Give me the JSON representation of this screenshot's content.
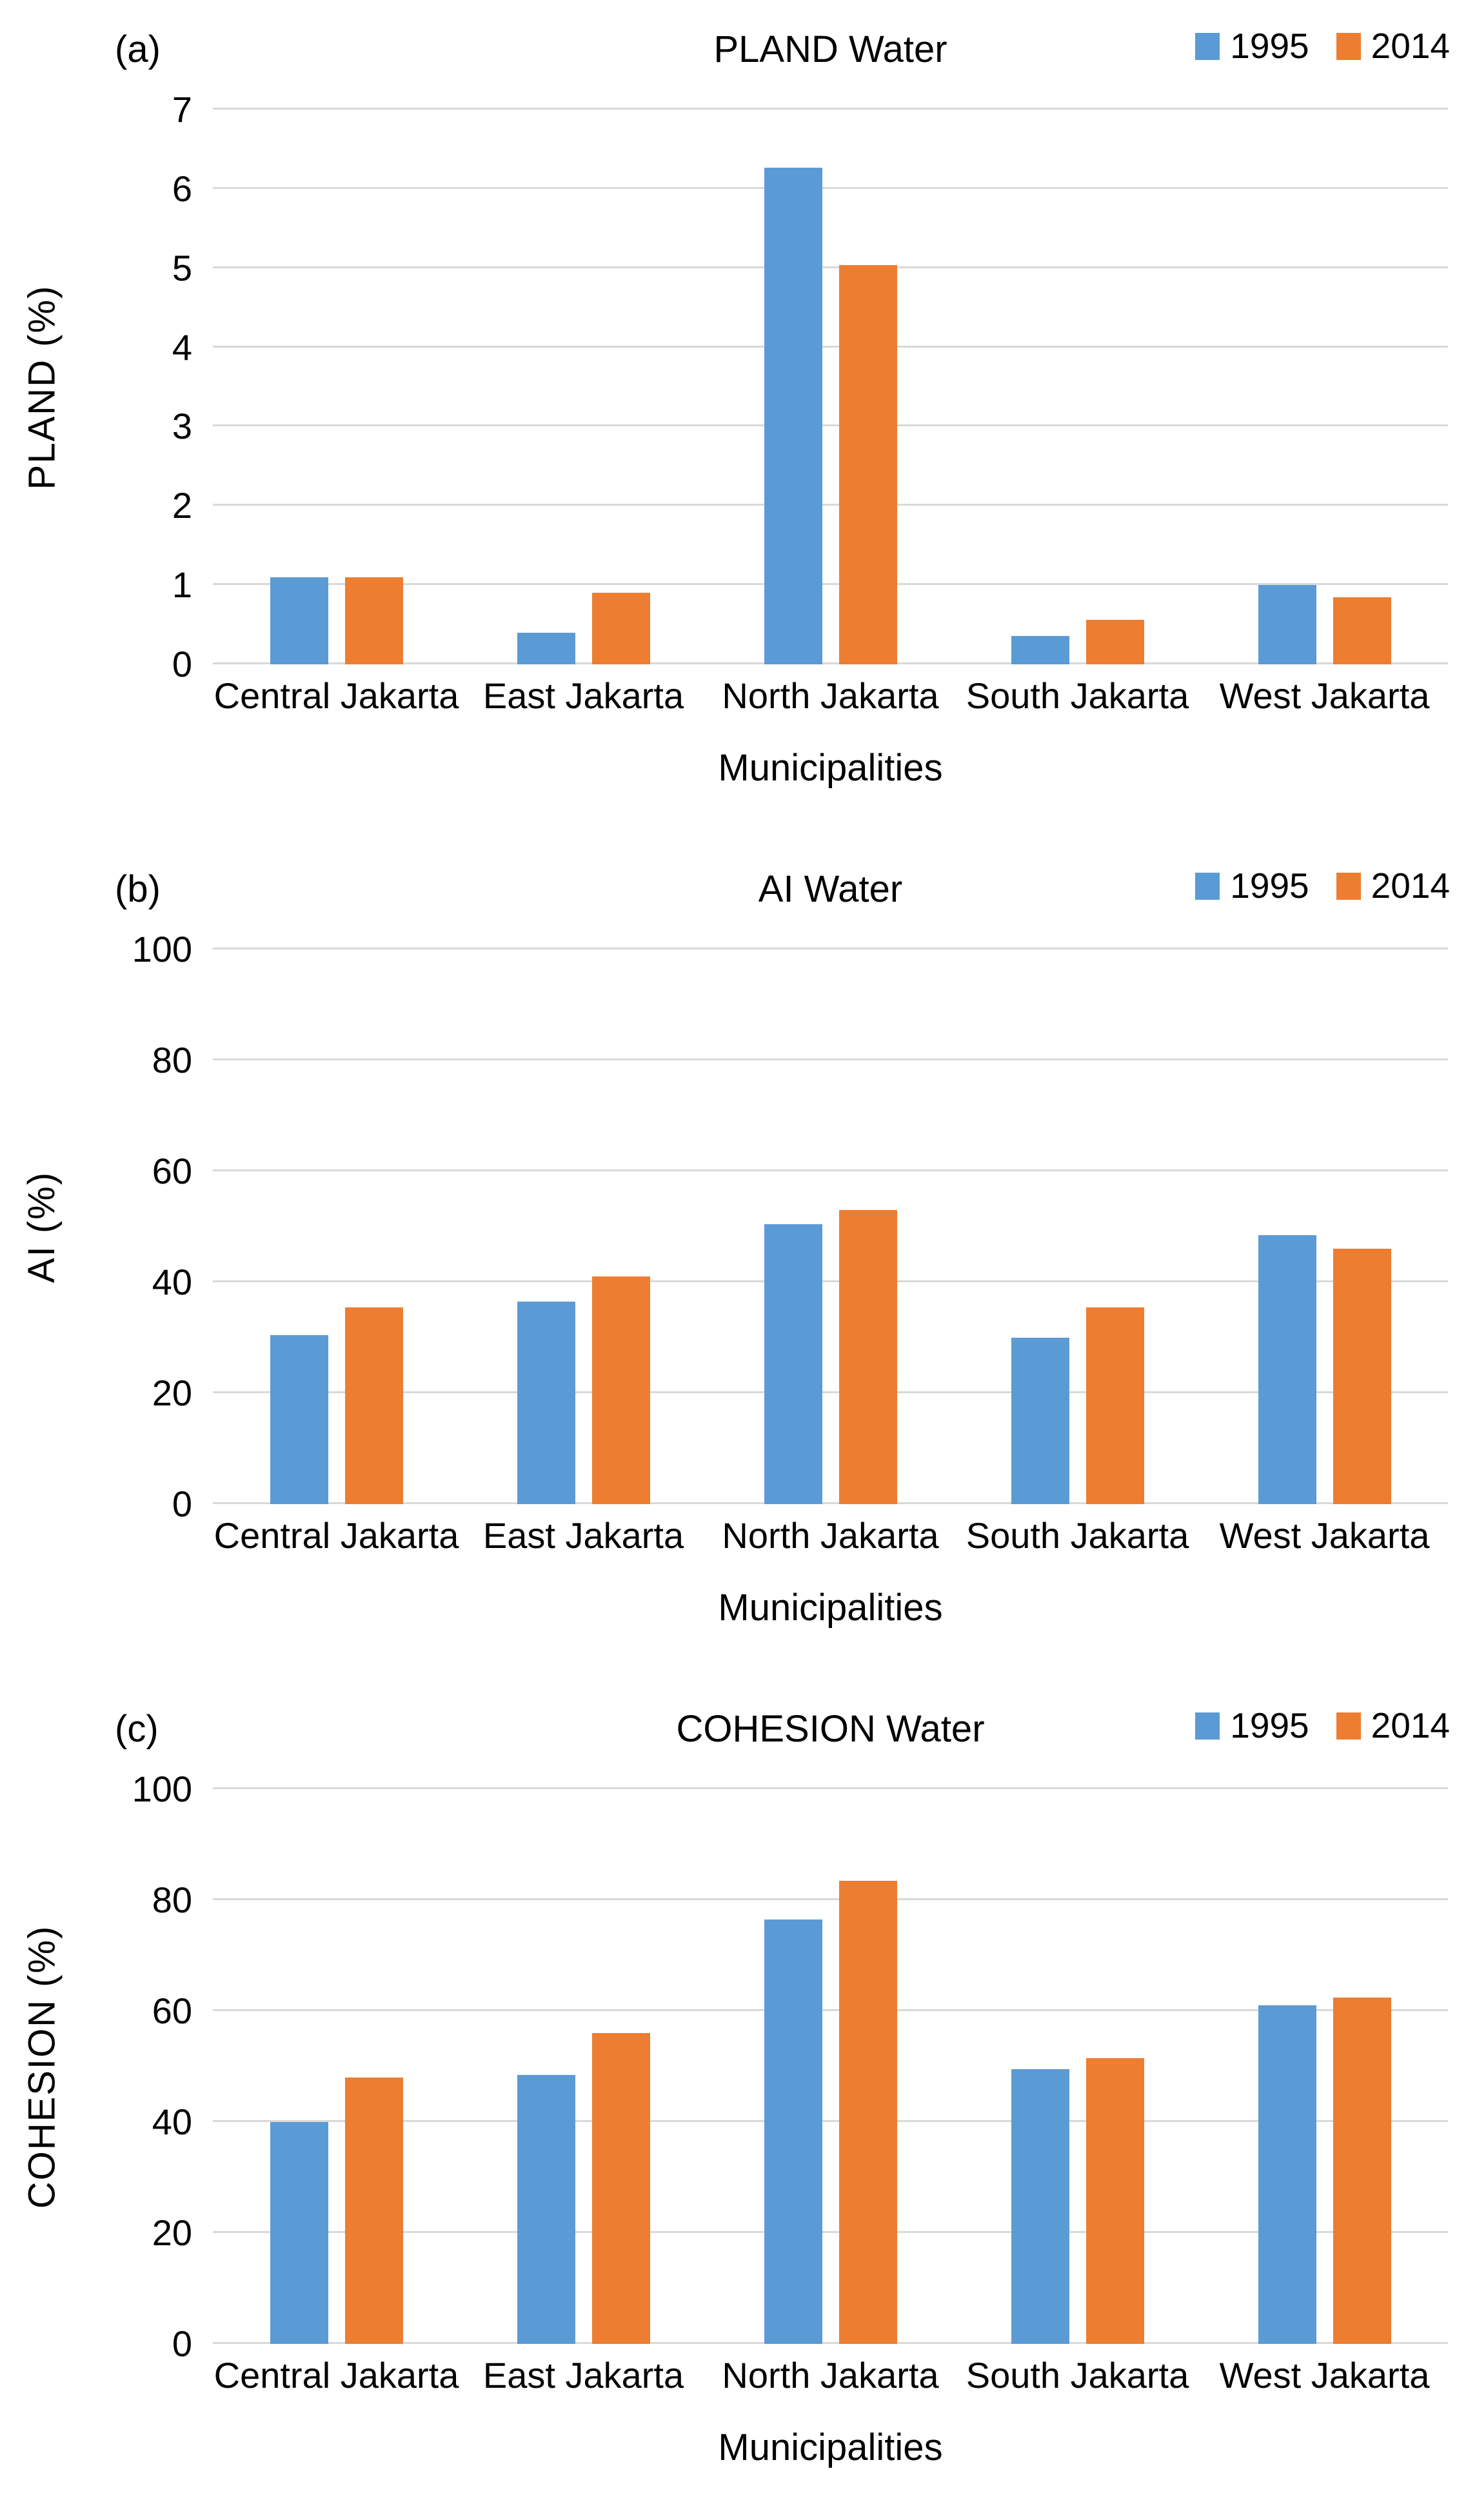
{
  "page": {
    "background": "#FFFFFF"
  },
  "colors": {
    "series_1995": "#5B9BD5",
    "series_2014": "#ED7D31",
    "gridline": "#D9D9D9",
    "text": "#000000"
  },
  "legend": {
    "entries": [
      "1995",
      "2014"
    ],
    "position": "top-right"
  },
  "chart_data": [
    {
      "panel_label": "(a)",
      "type": "bar",
      "title": "PLAND Water",
      "xlabel": "Municipalities",
      "ylabel": "PLAND (%)",
      "categories": [
        "Central Jakarta",
        "East Jakarta",
        "North Jakarta",
        "South Jakarta",
        "West Jakarta"
      ],
      "ylim": [
        0,
        7
      ],
      "yticks": [
        0,
        1,
        2,
        3,
        4,
        5,
        6,
        7
      ],
      "grid": true,
      "legend_position": "top-right",
      "series": [
        {
          "name": "1995",
          "color": "#5B9BD5",
          "values": [
            1.1,
            0.4,
            6.27,
            0.36,
            1.0
          ]
        },
        {
          "name": "2014",
          "color": "#ED7D31",
          "values": [
            1.1,
            0.9,
            5.04,
            0.56,
            0.85
          ]
        }
      ]
    },
    {
      "panel_label": "(b)",
      "type": "bar",
      "title": "AI Water",
      "xlabel": "Municipalities",
      "ylabel": "AI (%)",
      "categories": [
        "Central Jakarta",
        "East Jakarta",
        "North Jakarta",
        "South Jakarta",
        "West Jakarta"
      ],
      "ylim": [
        0,
        100
      ],
      "yticks": [
        0,
        20,
        40,
        60,
        80,
        100
      ],
      "grid": true,
      "legend_position": "top-right",
      "series": [
        {
          "name": "1995",
          "color": "#5B9BD5",
          "values": [
            30.5,
            36.5,
            50.5,
            30.0,
            48.5
          ]
        },
        {
          "name": "2014",
          "color": "#ED7D31",
          "values": [
            35.5,
            41.0,
            53.0,
            35.5,
            46.0
          ]
        }
      ]
    },
    {
      "panel_label": "(c)",
      "type": "bar",
      "title": "COHESION Water",
      "xlabel": "Municipalities",
      "ylabel": "COHESION (%)",
      "categories": [
        "Central Jakarta",
        "East Jakarta",
        "North Jakarta",
        "South Jakarta",
        "West Jakarta"
      ],
      "ylim": [
        0,
        100
      ],
      "yticks": [
        0,
        20,
        40,
        60,
        80,
        100
      ],
      "grid": true,
      "legend_position": "top-right",
      "series": [
        {
          "name": "1995",
          "color": "#5B9BD5",
          "values": [
            40.0,
            48.5,
            76.5,
            49.5,
            61.0
          ]
        },
        {
          "name": "2014",
          "color": "#ED7D31",
          "values": [
            48.0,
            56.0,
            83.5,
            51.5,
            62.5
          ]
        }
      ]
    }
  ]
}
